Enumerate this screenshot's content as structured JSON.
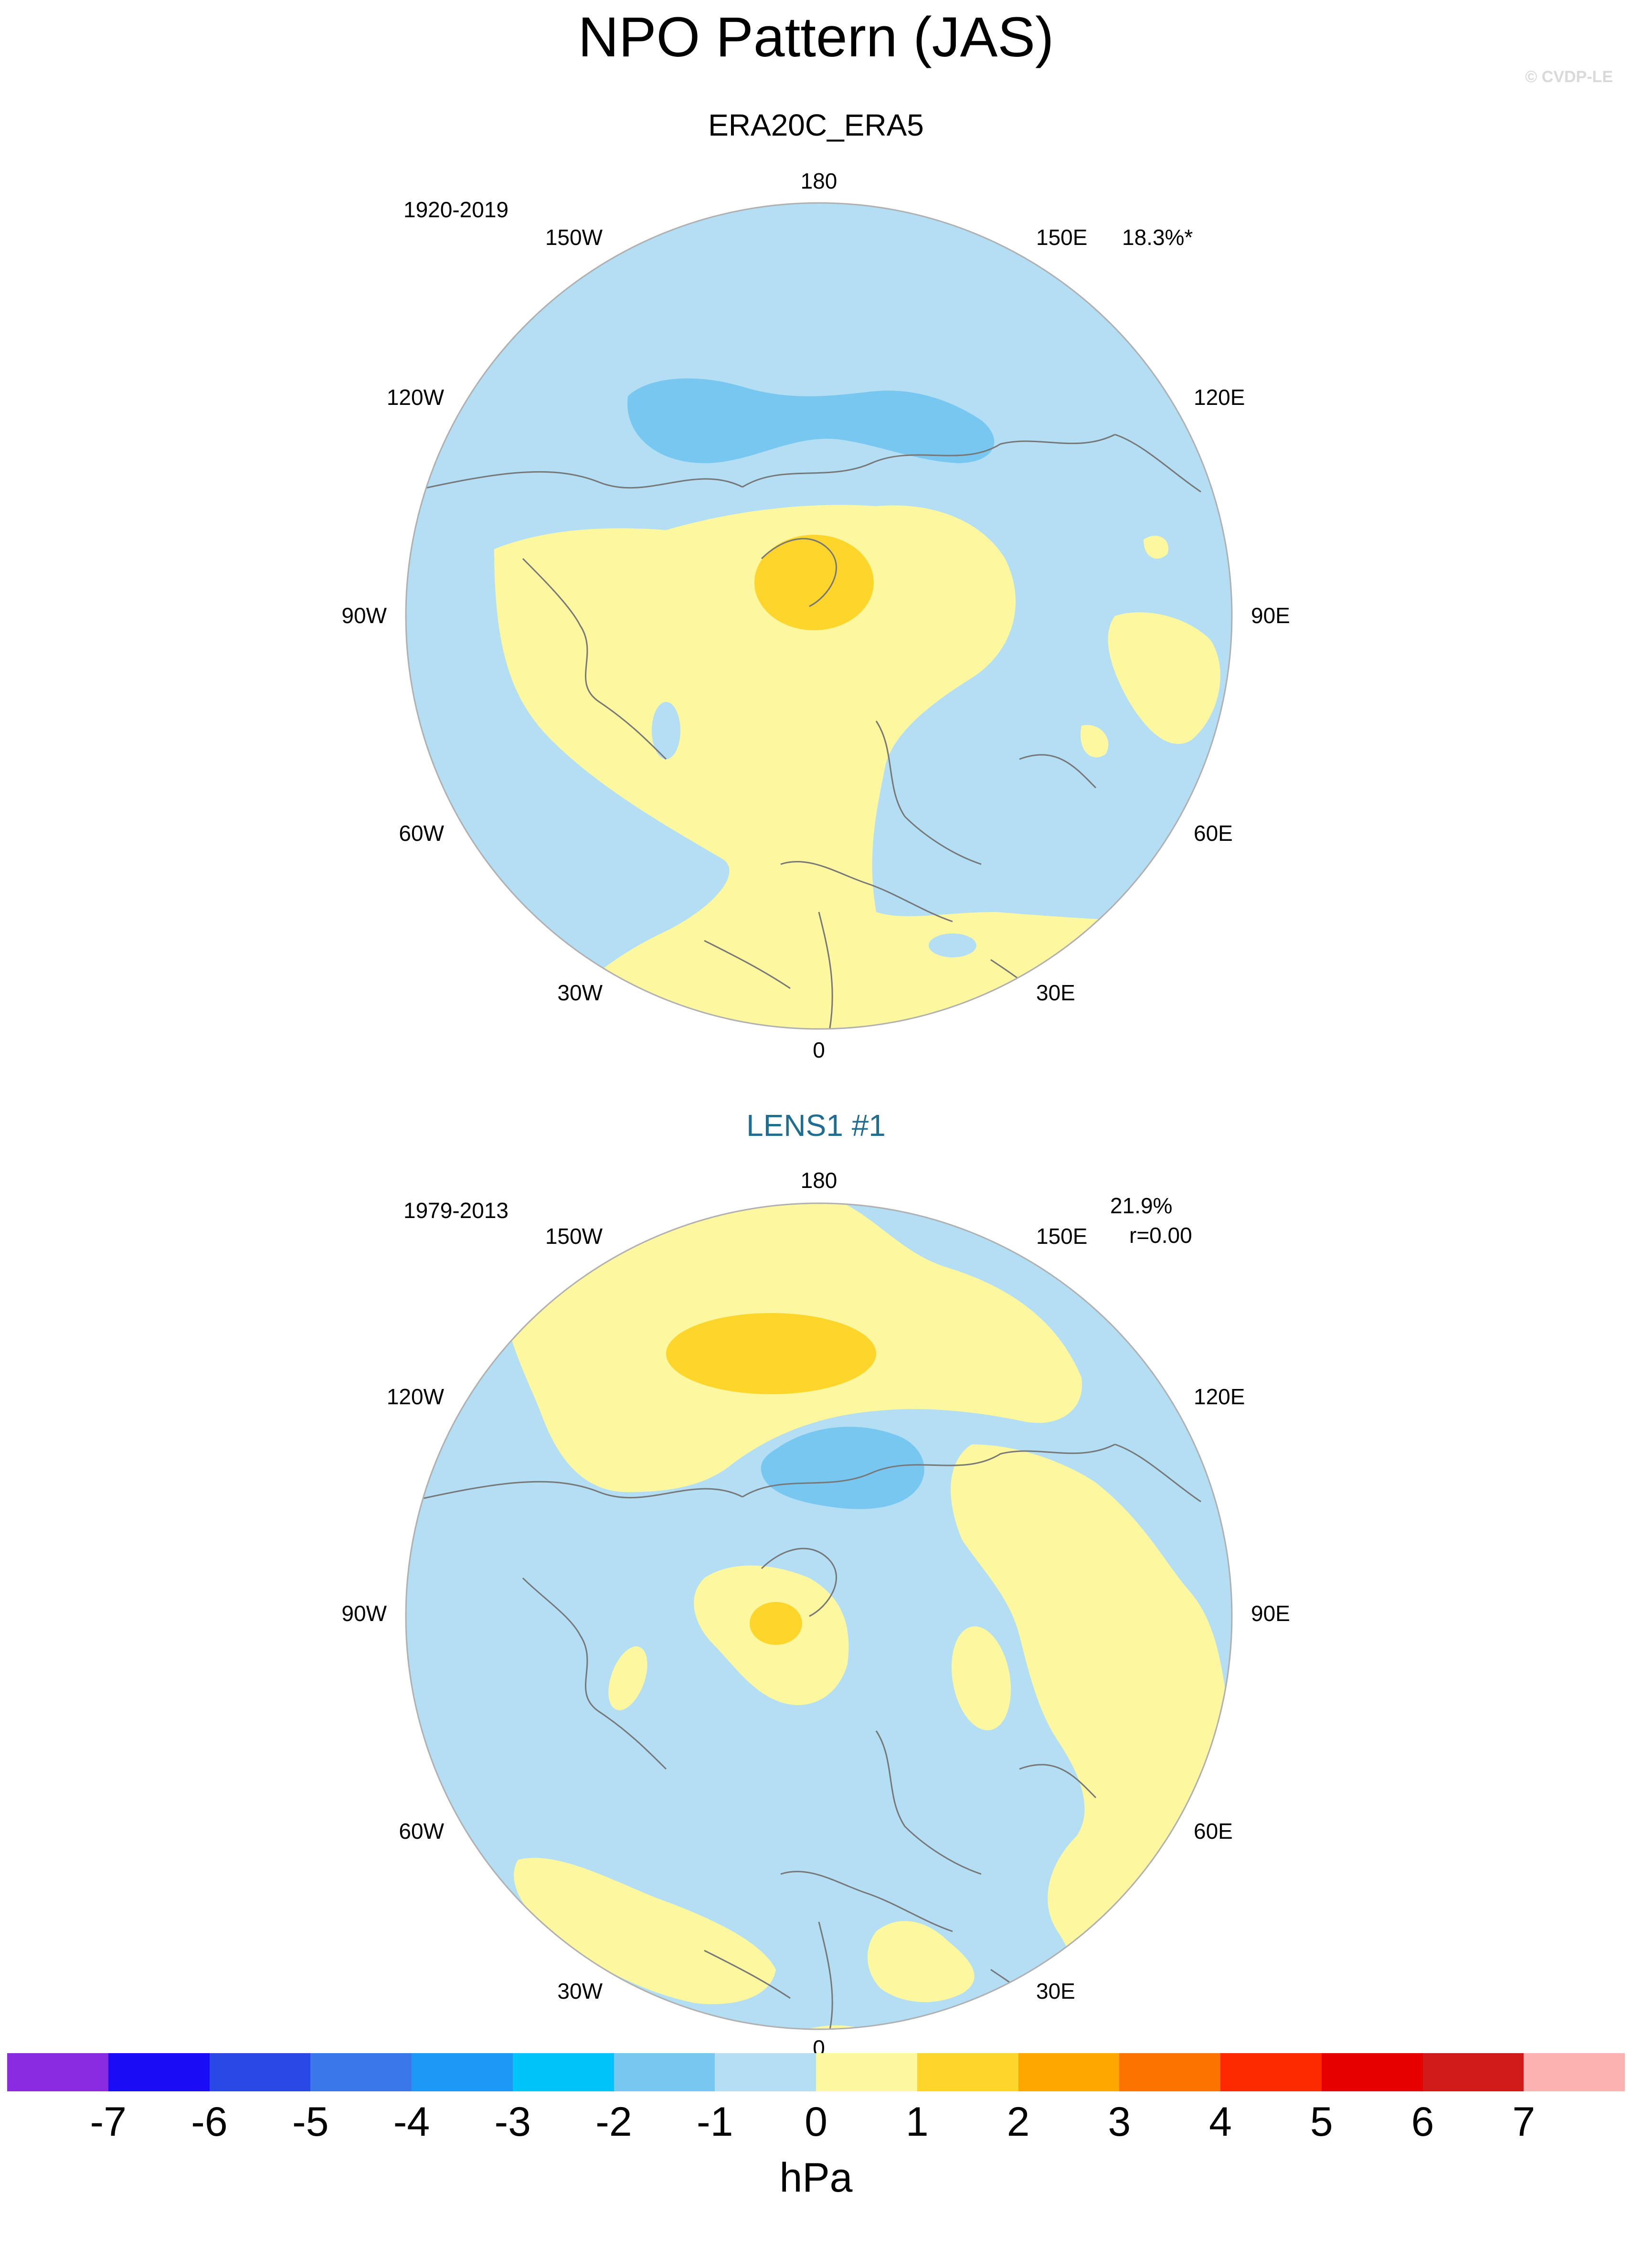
{
  "title": "NPO Pattern (JAS)",
  "credit": "© CVDP-LE",
  "panels": [
    {
      "title": "ERA20C_ERA5",
      "title_color": "#000000",
      "period": "1920-2019",
      "stat1": "18.3%*",
      "stat2": ""
    },
    {
      "title": "LENS1 #1",
      "title_color": "#1f6d91",
      "period": "1979-2013",
      "stat1": "21.9%",
      "stat2": "r=0.00"
    }
  ],
  "lon_labels": [
    "180",
    "150E",
    "120E",
    "90E",
    "60E",
    "30E",
    "0",
    "30W",
    "60W",
    "90W",
    "120W",
    "150W"
  ],
  "colorbar": {
    "unit": "hPa",
    "ticks": [
      "-7",
      "-6",
      "-5",
      "-4",
      "-3",
      "-2",
      "-1",
      "0",
      "1",
      "2",
      "3",
      "4",
      "5",
      "6",
      "7"
    ],
    "colors": [
      "#8a2be2",
      "#1a0cf5",
      "#2a48e6",
      "#3a78ea",
      "#1e98f5",
      "#00c3f9",
      "#77c7f0",
      "#b3def3",
      "#fdf7a0",
      "#fdd52b",
      "#fda700",
      "#fd7300",
      "#fd2a00",
      "#e60000",
      "#d11a1a",
      "#fdb2b2"
    ]
  },
  "map_colors": {
    "neg2": "#77c7f0",
    "neg1": "#b3def3",
    "pos1": "#fdf7a0",
    "pos2": "#fdd52b",
    "coast": "#777777",
    "rim": "#b0b0b0"
  }
}
